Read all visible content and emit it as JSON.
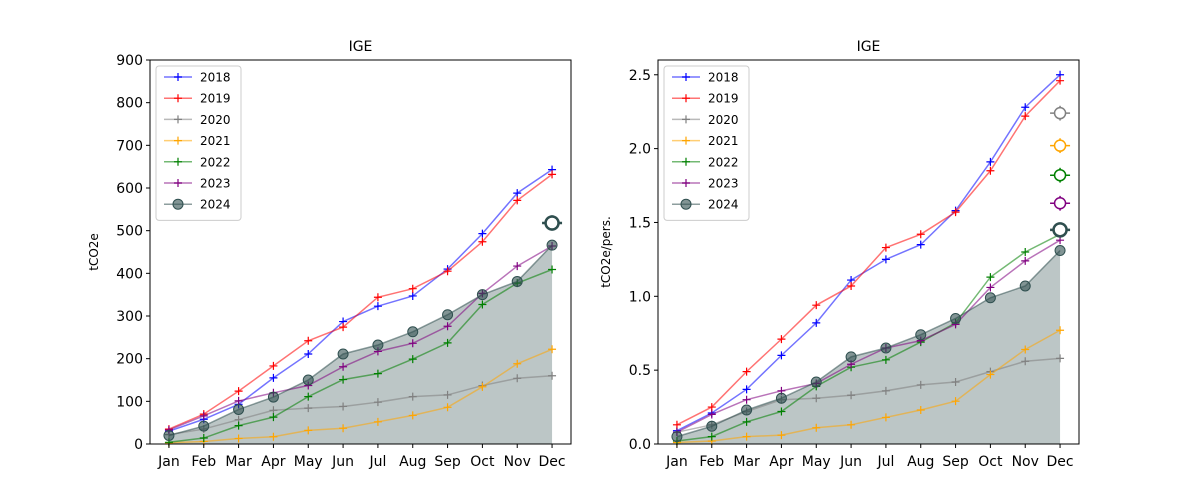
{
  "chart_data": [
    {
      "type": "line",
      "title": "IGE",
      "ylabel": "tCO2e",
      "xlabel": "",
      "ylim": [
        0,
        900
      ],
      "yticks": [
        0,
        100,
        200,
        300,
        400,
        500,
        600,
        700,
        800,
        900
      ],
      "categories": [
        "Jan",
        "Feb",
        "Mar",
        "Apr",
        "May",
        "Jun",
        "Jul",
        "Aug",
        "Sep",
        "Oct",
        "Nov",
        "Dec"
      ],
      "legend_position": "top-left",
      "series": [
        {
          "name": "2018",
          "color": "#0000ff",
          "marker": "plus",
          "values": [
            30,
            58,
            93,
            155,
            211,
            287,
            323,
            347,
            410,
            493,
            588,
            643
          ]
        },
        {
          "name": "2019",
          "color": "#ff0000",
          "marker": "plus",
          "values": [
            35,
            70,
            124,
            183,
            242,
            274,
            344,
            364,
            405,
            474,
            571,
            632
          ]
        },
        {
          "name": "2020",
          "color": "#808080",
          "marker": "plus",
          "values": [
            22,
            35,
            57,
            79,
            84,
            88,
            98,
            111,
            115,
            137,
            154,
            160
          ]
        },
        {
          "name": "2021",
          "color": "#ffa500",
          "marker": "plus",
          "values": [
            3,
            6,
            13,
            17,
            32,
            37,
            52,
            67,
            86,
            134,
            188,
            222
          ]
        },
        {
          "name": "2022",
          "color": "#008000",
          "marker": "plus",
          "values": [
            4,
            14,
            43,
            63,
            111,
            151,
            165,
            199,
            237,
            327,
            377,
            409
          ]
        },
        {
          "name": "2023",
          "color": "#800080",
          "marker": "plus",
          "values": [
            33,
            66,
            101,
            120,
            137,
            181,
            217,
            236,
            276,
            353,
            417,
            464
          ]
        },
        {
          "name": "2024",
          "color": "#2f4f4f",
          "marker": "circle",
          "filled": true,
          "values": [
            20,
            42,
            81,
            110,
            150,
            211,
            232,
            263,
            303,
            350,
            381,
            466
          ]
        }
      ],
      "projection": {
        "category": "Dec",
        "value": 518,
        "error": 18,
        "color": "#2f4f4f"
      }
    },
    {
      "type": "line",
      "title": "IGE",
      "ylabel": "tCO2e/pers.",
      "xlabel": "",
      "ylim": [
        0,
        2.6
      ],
      "yticks": [
        0.0,
        0.5,
        1.0,
        1.5,
        2.0,
        2.5
      ],
      "ytick_labels": [
        "0.0",
        "0.5",
        "1.0",
        "1.5",
        "2.0",
        "2.5"
      ],
      "categories": [
        "Jan",
        "Feb",
        "Mar",
        "Apr",
        "May",
        "Jun",
        "Jul",
        "Aug",
        "Sep",
        "Oct",
        "Nov",
        "Dec"
      ],
      "legend_position": "top-left",
      "series": [
        {
          "name": "2018",
          "color": "#0000ff",
          "marker": "plus",
          "values": [
            0.09,
            0.21,
            0.37,
            0.6,
            0.82,
            1.11,
            1.25,
            1.35,
            1.58,
            1.91,
            2.28,
            2.5
          ]
        },
        {
          "name": "2019",
          "color": "#ff0000",
          "marker": "plus",
          "values": [
            0.13,
            0.25,
            0.49,
            0.71,
            0.94,
            1.07,
            1.33,
            1.42,
            1.57,
            1.85,
            2.22,
            2.46
          ]
        },
        {
          "name": "2020",
          "color": "#808080",
          "marker": "plus",
          "values": [
            0.08,
            0.13,
            0.22,
            0.3,
            0.31,
            0.33,
            0.36,
            0.4,
            0.42,
            0.49,
            0.56,
            0.58
          ]
        },
        {
          "name": "2021",
          "color": "#ffa500",
          "marker": "plus",
          "values": [
            0.01,
            0.02,
            0.05,
            0.06,
            0.11,
            0.13,
            0.18,
            0.23,
            0.29,
            0.47,
            0.64,
            0.77
          ]
        },
        {
          "name": "2022",
          "color": "#008000",
          "marker": "plus",
          "values": [
            0.02,
            0.05,
            0.15,
            0.22,
            0.39,
            0.52,
            0.57,
            0.69,
            0.82,
            1.13,
            1.3,
            1.42
          ]
        },
        {
          "name": "2023",
          "color": "#800080",
          "marker": "plus",
          "values": [
            0.08,
            0.2,
            0.3,
            0.36,
            0.41,
            0.54,
            0.65,
            0.7,
            0.81,
            1.06,
            1.24,
            1.38
          ]
        },
        {
          "name": "2024",
          "color": "#2f4f4f",
          "marker": "circle",
          "filled": true,
          "values": [
            0.05,
            0.12,
            0.23,
            0.31,
            0.42,
            0.59,
            0.65,
            0.74,
            0.85,
            0.99,
            1.07,
            1.31
          ]
        }
      ],
      "projections": [
        {
          "category": "Dec",
          "value": 2.24,
          "error": 0.05,
          "color": "#808080"
        },
        {
          "category": "Dec",
          "value": 2.02,
          "error": 0.05,
          "color": "#ffa500"
        },
        {
          "category": "Dec",
          "value": 1.82,
          "error": 0.05,
          "color": "#008000"
        },
        {
          "category": "Dec",
          "value": 1.63,
          "error": 0.05,
          "color": "#800080"
        },
        {
          "category": "Dec",
          "value": 1.45,
          "error": 0.05,
          "color": "#2f4f4f"
        }
      ]
    }
  ]
}
